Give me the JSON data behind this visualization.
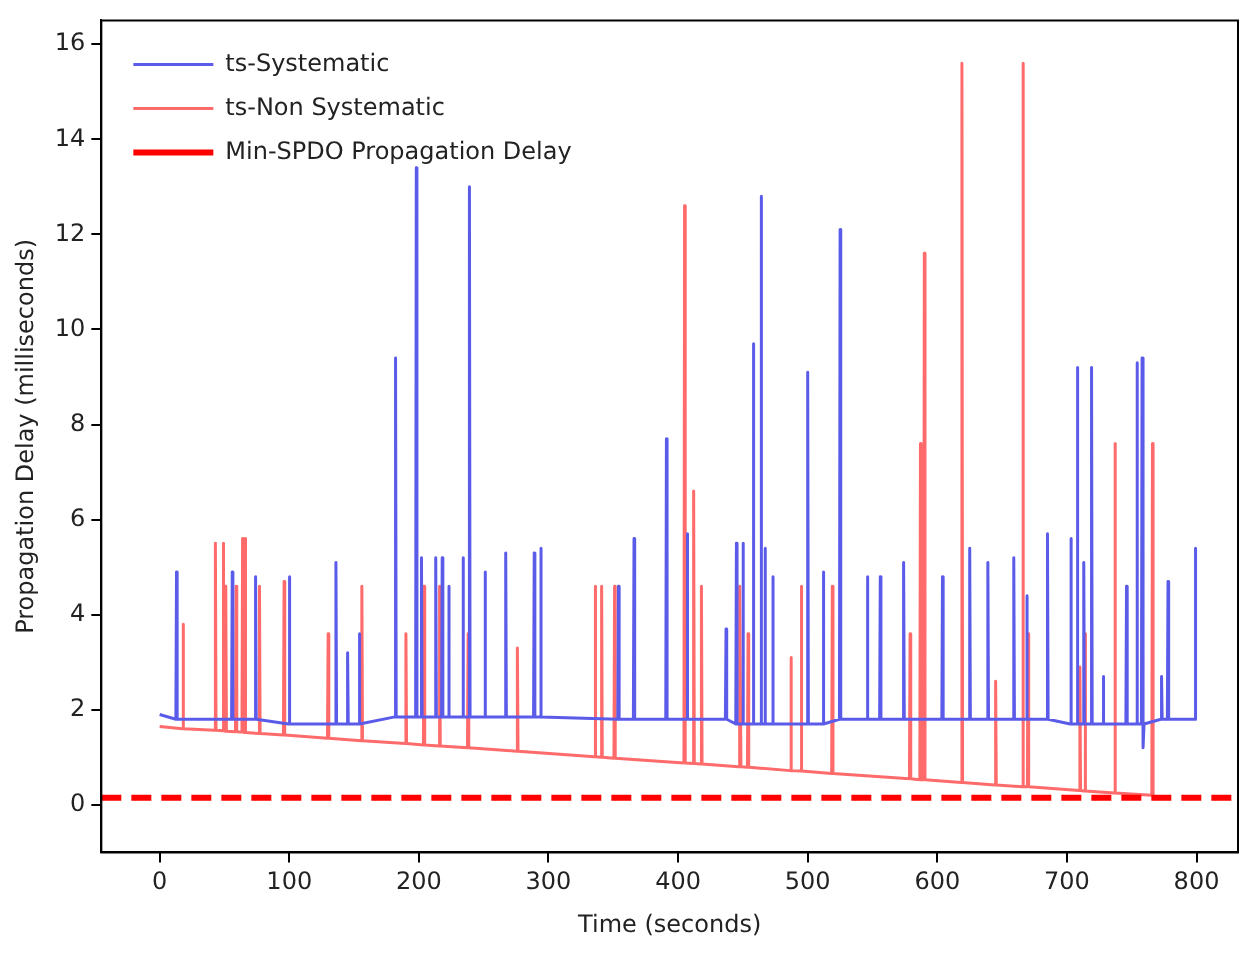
{
  "chart_data": {
    "type": "line",
    "xlabel": "Time (seconds)",
    "ylabel": "Propagation Delay (milliseconds)",
    "xlim": [
      -45,
      832
    ],
    "xticks": [
      0,
      100,
      200,
      300,
      400,
      500,
      600,
      700,
      800
    ],
    "ylim": [
      -1,
      16.5
    ],
    "yticks": [
      0,
      2,
      4,
      6,
      8,
      10,
      12,
      14,
      16
    ],
    "grid": false,
    "legend": "top left",
    "marker": "none",
    "line_style": "solid",
    "ref_lines": [
      {
        "axis": "y",
        "value": 0.15,
        "label": "Min-SPDO Propagation Delay",
        "color": "#ff0000",
        "line_style": "dashed"
      }
    ],
    "series": [
      {
        "name": "ts-Systematic",
        "color": "#5b5bea",
        "x": [
          0,
          12.5,
          13,
          13.5,
          55.5,
          56,
          56.5,
          73.5,
          74,
          74.5,
          99.5,
          100,
          100.5,
          135.5,
          136,
          136.5,
          144.5,
          145,
          145.5,
          153.5,
          154,
          154.5,
          181.5,
          182,
          182.5,
          197.5,
          198,
          198.5,
          201.5,
          202,
          202.5,
          212.5,
          213,
          213.5,
          217.5,
          218,
          218.5,
          222.5,
          223,
          223.5,
          233.5,
          234,
          234.5,
          238.5,
          239,
          239.5,
          250.5,
          251,
          251.5,
          266.5,
          267,
          267.5,
          288.5,
          289,
          289.5,
          293.5,
          294,
          294.5,
          353.5,
          354,
          354.5,
          365.5,
          366,
          366.5,
          390.5,
          391,
          391.5,
          406.5,
          407,
          407.5,
          436.5,
          437,
          437.5,
          444.5,
          445,
          445.5,
          449.5,
          450,
          450.5,
          457.5,
          458,
          458.5,
          463.5,
          464,
          464.5,
          466.5,
          467,
          467.5,
          472.5,
          473,
          473.5,
          499.5,
          500,
          500.5,
          511.5,
          512,
          512.5,
          524.5,
          525,
          525.5,
          545.5,
          546,
          546.5,
          555.5,
          556,
          556.5,
          573.5,
          574,
          574.5,
          603.5,
          604,
          604.5,
          624.5,
          625,
          625.5,
          638.5,
          639,
          639.5,
          658.5,
          659,
          659.5,
          668.5,
          669,
          669.5,
          684.5,
          685,
          685.5,
          702.5,
          703,
          703.5,
          707.5,
          708,
          708.5,
          712.5,
          713,
          713.5,
          718.5,
          719,
          719.5,
          727.5,
          728,
          728.5,
          745.5,
          746,
          746.5,
          753.5,
          754,
          754.5,
          757.5,
          758,
          758.5,
          759,
          759.5,
          772.5,
          773,
          773.5,
          777.5,
          778,
          778.5,
          798.5,
          799,
          799.5,
          800
        ],
        "values": [
          1.9,
          1.8,
          4.9,
          1.8,
          1.8,
          4.9,
          1.8,
          1.8,
          4.8,
          1.8,
          1.7,
          4.8,
          1.7,
          1.7,
          5.1,
          1.7,
          1.7,
          3.2,
          1.7,
          1.7,
          3.6,
          1.7,
          1.85,
          9.4,
          1.85,
          1.85,
          13.4,
          1.85,
          1.85,
          5.2,
          1.85,
          1.85,
          5.2,
          1.85,
          1.85,
          5.2,
          1.85,
          1.85,
          4.6,
          1.85,
          1.85,
          5.2,
          1.85,
          1.85,
          13.0,
          1.85,
          1.85,
          4.9,
          1.85,
          1.85,
          5.3,
          1.85,
          1.85,
          5.3,
          1.85,
          1.85,
          5.4,
          1.85,
          1.8,
          4.6,
          1.8,
          1.8,
          5.6,
          1.8,
          1.8,
          7.7,
          1.8,
          1.8,
          5.7,
          1.8,
          1.8,
          3.7,
          1.8,
          1.7,
          5.5,
          1.7,
          1.7,
          5.5,
          1.7,
          1.7,
          9.7,
          1.7,
          1.7,
          12.8,
          1.7,
          1.7,
          5.4,
          1.7,
          1.7,
          4.8,
          1.7,
          1.7,
          9.1,
          1.7,
          1.7,
          4.9,
          1.7,
          1.8,
          12.1,
          1.8,
          1.8,
          4.8,
          1.8,
          1.8,
          4.8,
          1.8,
          1.8,
          5.1,
          1.8,
          1.8,
          4.8,
          1.8,
          1.8,
          5.4,
          1.8,
          1.8,
          5.1,
          1.8,
          1.8,
          5.2,
          1.8,
          1.8,
          4.4,
          1.8,
          1.8,
          5.7,
          1.8,
          1.7,
          5.6,
          1.7,
          1.7,
          9.2,
          1.7,
          1.7,
          5.1,
          1.7,
          1.7,
          9.2,
          1.7,
          1.7,
          2.7,
          1.7,
          1.7,
          4.6,
          1.7,
          1.7,
          9.3,
          1.7,
          1.7,
          9.4,
          1.7,
          1.2,
          1.7,
          1.8,
          2.7,
          1.8,
          1.8,
          4.7,
          1.8,
          1.8,
          5.4,
          1.8,
          1.8
        ]
      },
      {
        "name": "ts-Non Systematic",
        "color": "#ff6b6b",
        "x": [
          0,
          17.5,
          18,
          18.5,
          42.5,
          43,
          43.5,
          48.5,
          49,
          49.5,
          50.5,
          51,
          51.5,
          58.5,
          59,
          59.5,
          63.5,
          64,
          64.5,
          65.5,
          66,
          66.5,
          76.5,
          77,
          77.5,
          95.5,
          96,
          96.5,
          129.5,
          130,
          130.5,
          155.5,
          156,
          156.5,
          189.5,
          190,
          190.5,
          203.5,
          204,
          204.5,
          215.5,
          216,
          216.5,
          237.5,
          238,
          238.5,
          275.5,
          276,
          276.5,
          335.5,
          336,
          336.5,
          340.5,
          341,
          341.5,
          350.5,
          351,
          351.5,
          404.5,
          405,
          405.5,
          411.5,
          412,
          412.5,
          417.5,
          418,
          418.5,
          446.5,
          447.5,
          448.5,
          453.5,
          454,
          454.5,
          486.5,
          487,
          487.5,
          494.5,
          495,
          495.5,
          518.5,
          519,
          519.5,
          578.5,
          579,
          579.5,
          586.5,
          587,
          587.5,
          589.5,
          590,
          590.5,
          618.5,
          619,
          619.5,
          644.5,
          645,
          645.5,
          665.5,
          666,
          666.5,
          669.5,
          670,
          670.5,
          709.5,
          710,
          710.5,
          713.5,
          714,
          714.5,
          736.5,
          737,
          737.5,
          765.5,
          766,
          766.5
        ],
        "values": [
          1.65,
          1.6,
          3.8,
          1.6,
          1.57,
          5.5,
          1.57,
          1.56,
          5.5,
          1.56,
          1.55,
          4.6,
          1.55,
          1.54,
          4.6,
          1.54,
          1.53,
          5.6,
          1.53,
          1.52,
          5.6,
          1.52,
          1.5,
          4.6,
          1.5,
          1.47,
          4.7,
          1.47,
          1.4,
          3.6,
          1.4,
          1.35,
          4.6,
          1.35,
          1.29,
          3.6,
          1.29,
          1.26,
          4.6,
          1.26,
          1.24,
          4.6,
          1.24,
          1.2,
          3.6,
          1.2,
          1.13,
          3.3,
          1.13,
          1.01,
          4.6,
          1.01,
          1.0,
          4.6,
          1.0,
          0.98,
          4.6,
          0.98,
          0.88,
          12.6,
          0.88,
          0.87,
          6.6,
          0.87,
          0.86,
          4.6,
          0.86,
          0.8,
          4.6,
          0.8,
          0.79,
          3.6,
          0.79,
          0.72,
          3.1,
          0.72,
          0.71,
          4.6,
          0.71,
          0.66,
          4.6,
          0.66,
          0.55,
          3.6,
          0.55,
          0.53,
          7.6,
          0.53,
          0.53,
          11.6,
          0.53,
          0.47,
          15.6,
          0.47,
          0.42,
          2.6,
          0.42,
          0.38,
          15.6,
          0.38,
          0.38,
          3.6,
          0.38,
          0.3,
          2.9,
          0.3,
          0.29,
          3.6,
          0.29,
          0.25,
          7.6,
          0.25,
          0.2,
          7.6,
          0.2
        ]
      }
    ]
  }
}
